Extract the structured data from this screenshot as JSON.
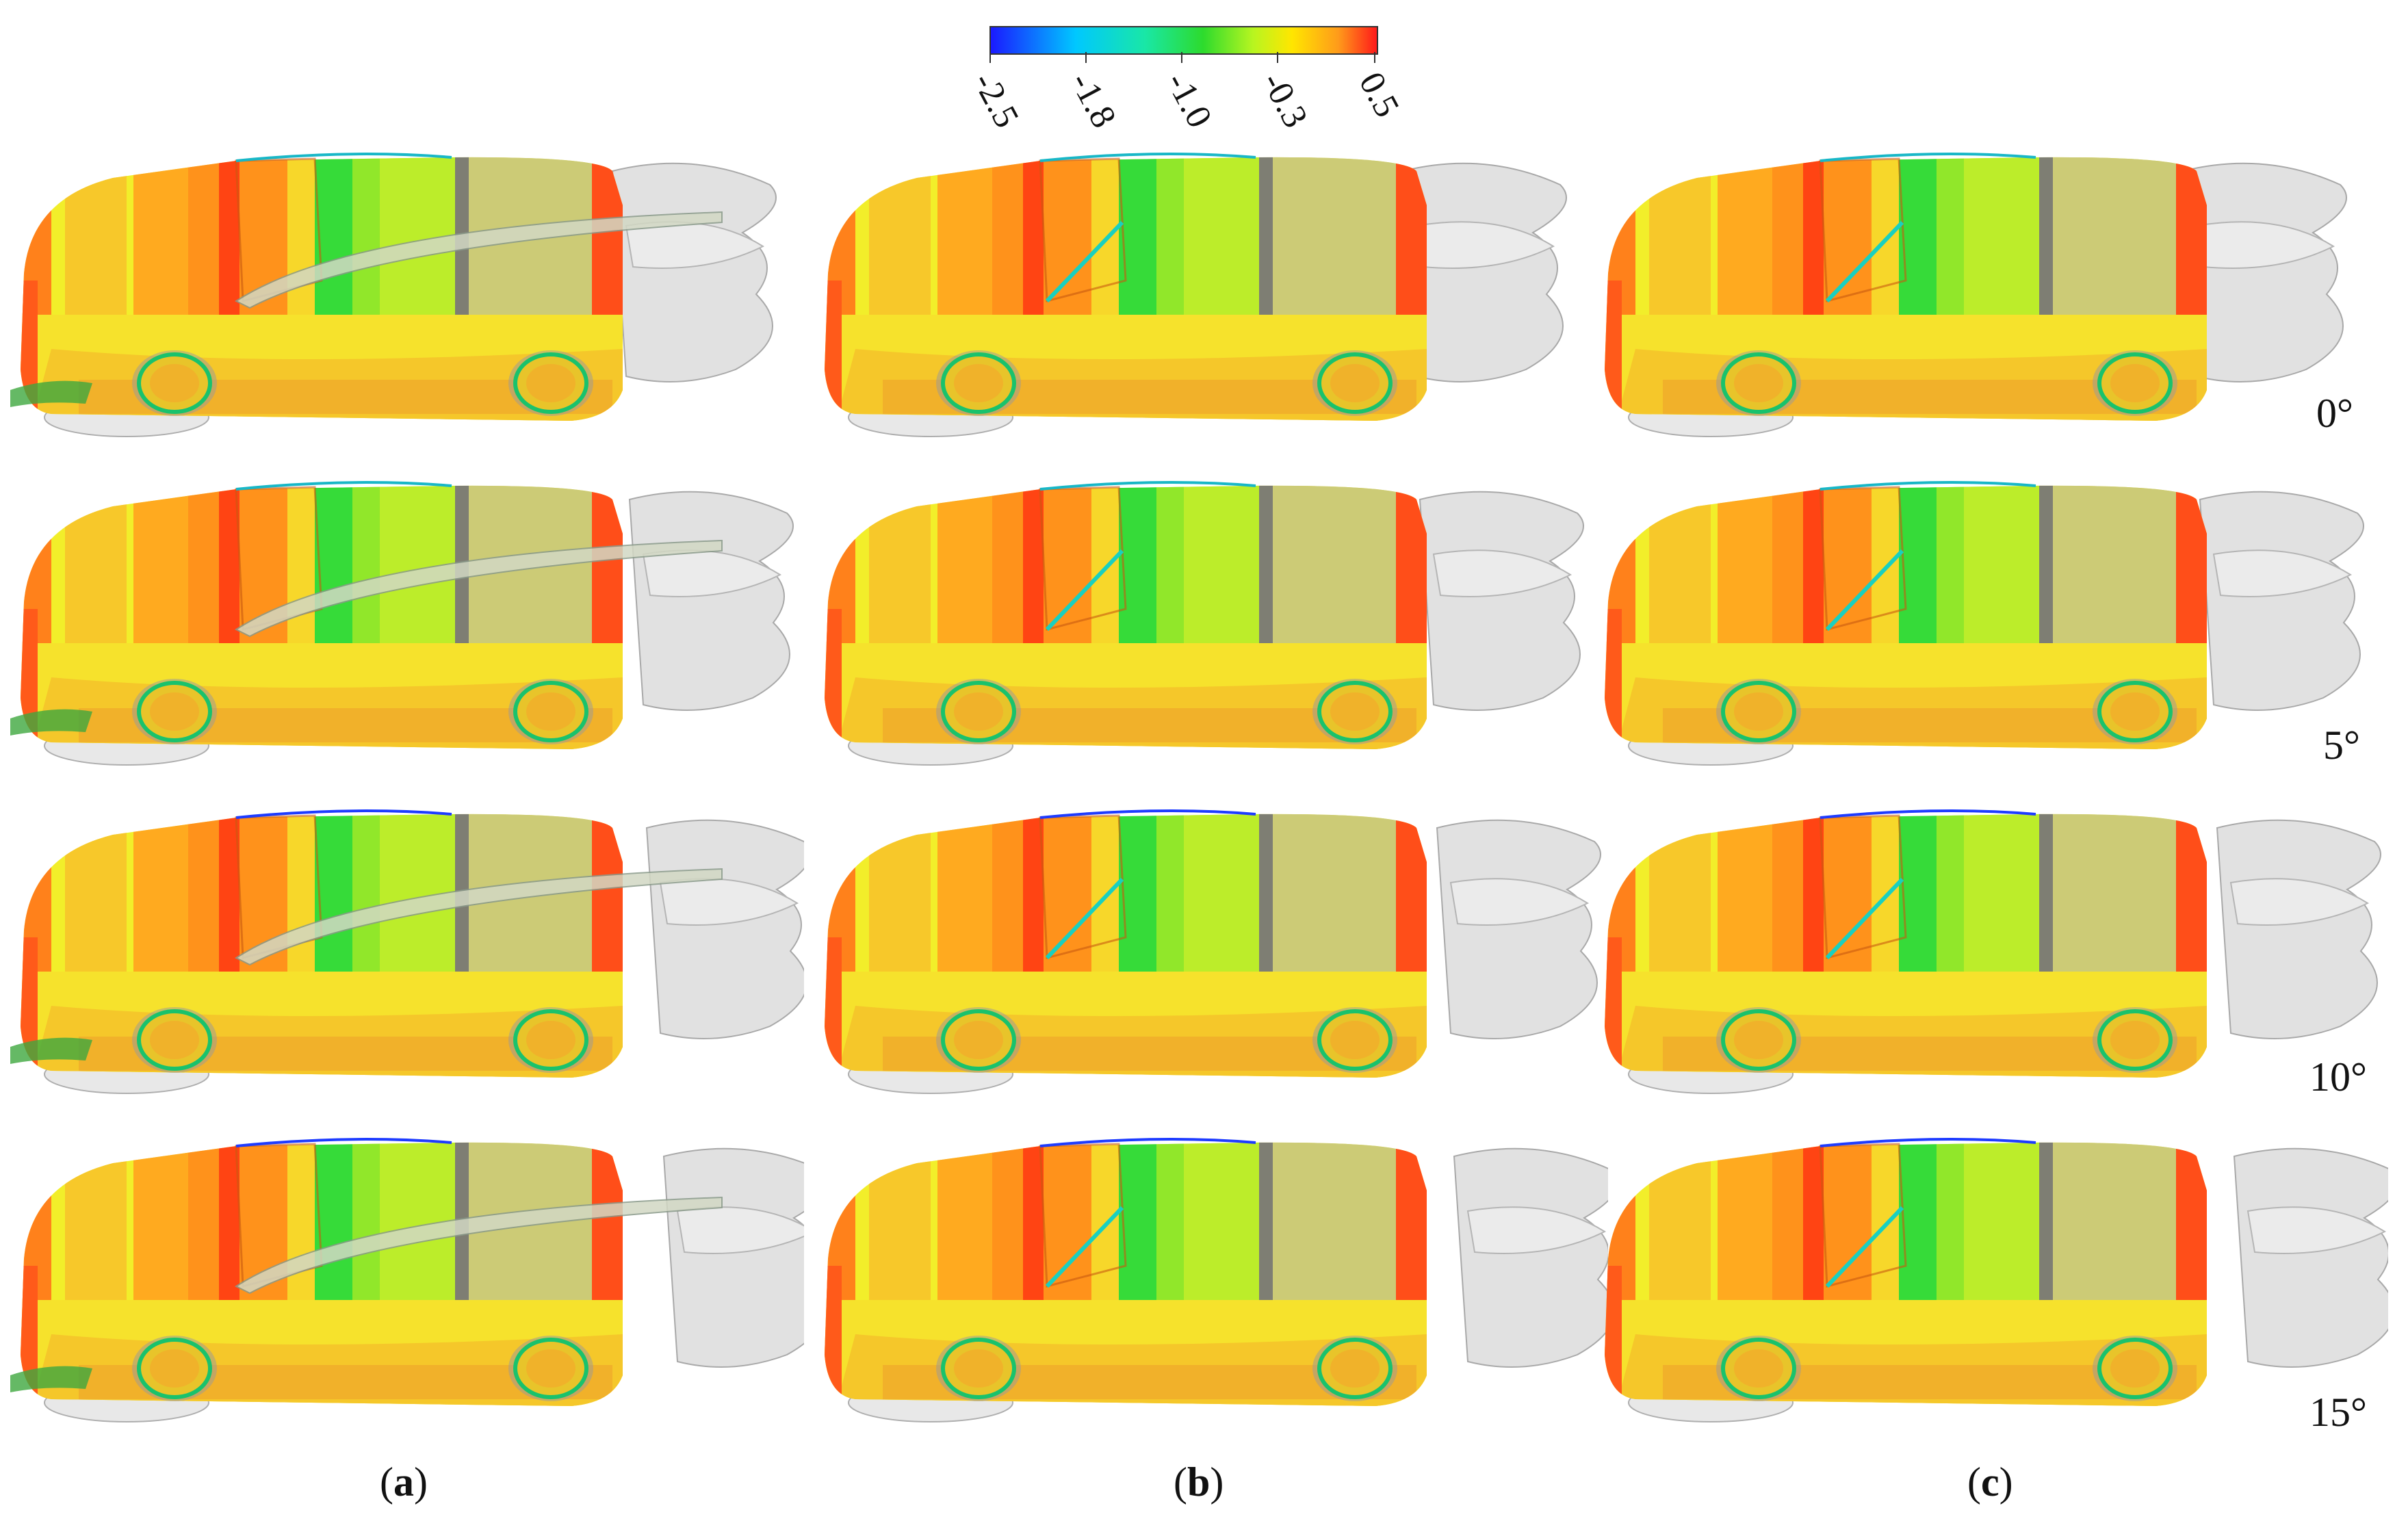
{
  "colorbar": {
    "ticks": [
      "-2.5",
      "-1.8",
      "-1.0",
      "-0.3",
      "0.5"
    ],
    "colors": [
      "#1a1aff",
      "#00c8ff",
      "#2ddb2d",
      "#ffe600",
      "#ff1a1a"
    ]
  },
  "angles": [
    "0°",
    "5°",
    "10°",
    "15°"
  ],
  "columns": [
    {
      "letter": "a"
    },
    {
      "letter": "b"
    },
    {
      "letter": "c"
    }
  ]
}
